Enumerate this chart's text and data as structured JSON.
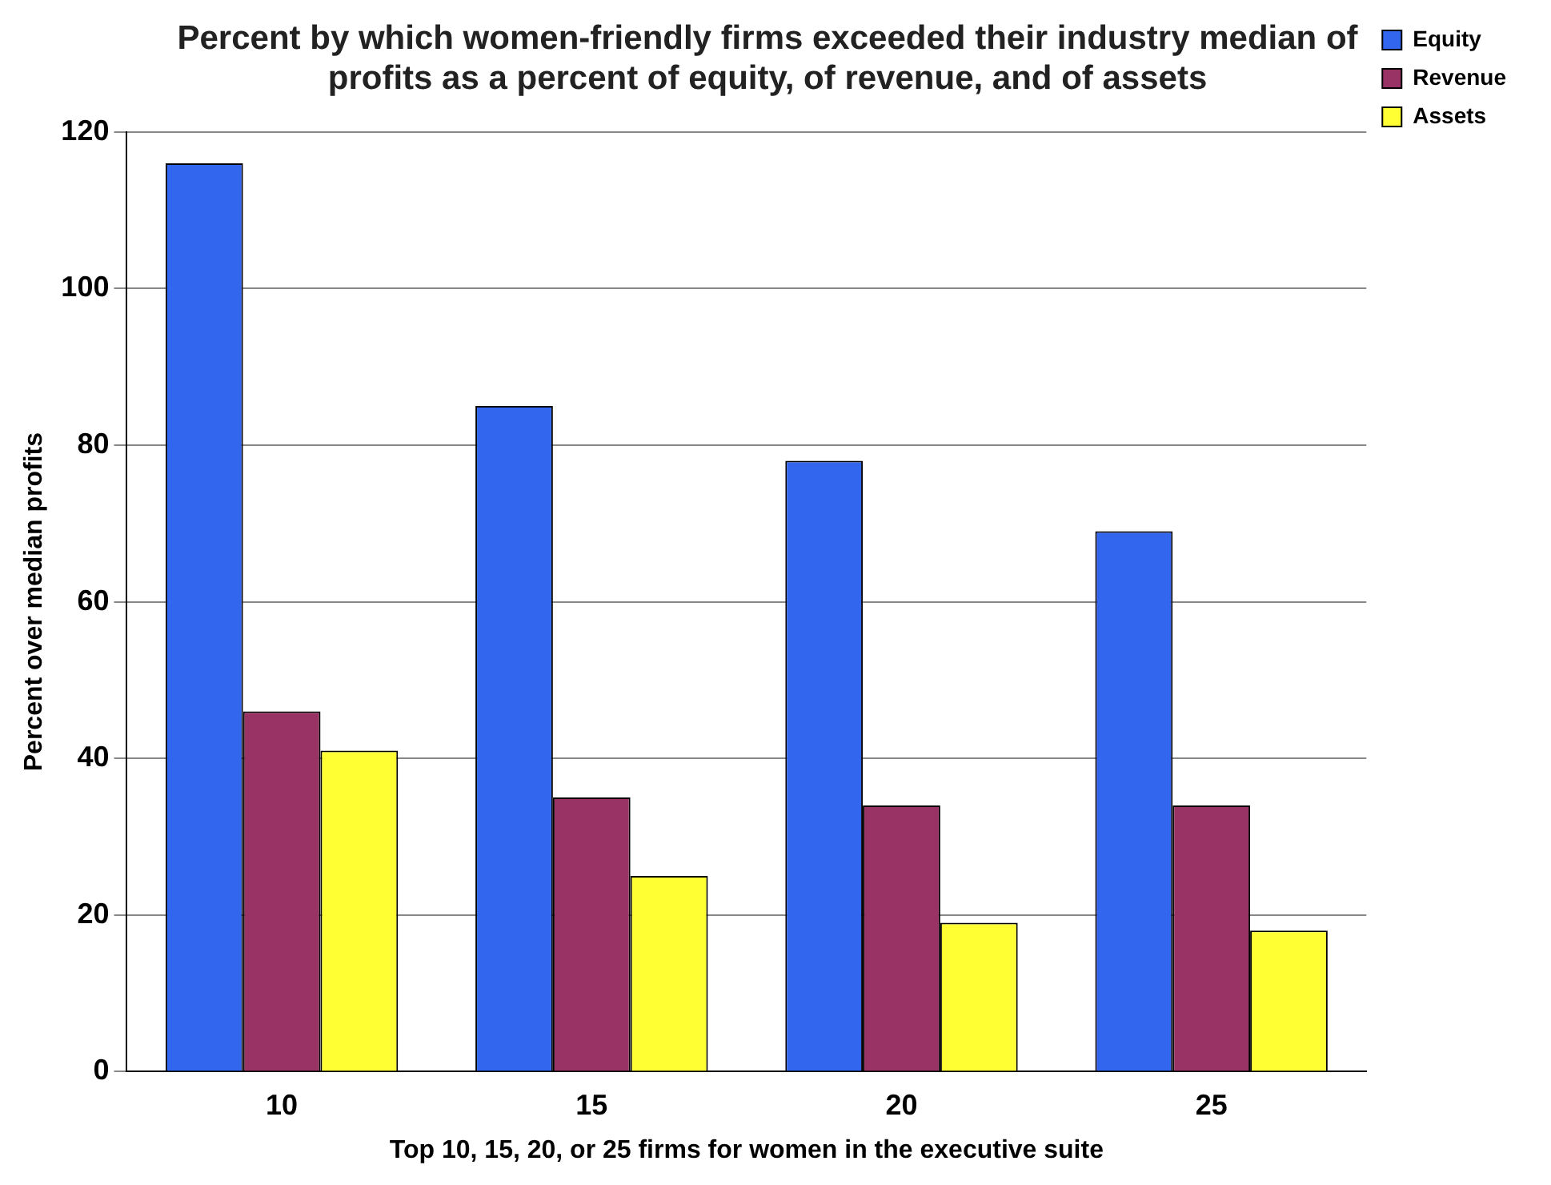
{
  "chart_data": {
    "type": "bar",
    "title": "Percent by which women-friendly firms exceeded their industry median of profits as a percent of equity, of revenue, and of assets",
    "xlabel": "Top 10, 15, 20, or 25 firms for women in the executive suite",
    "ylabel": "Percent over median profits",
    "categories": [
      "10",
      "15",
      "20",
      "25"
    ],
    "series": [
      {
        "name": "Equity",
        "color": "#3366ee",
        "values": [
          116,
          85,
          78,
          69
        ]
      },
      {
        "name": "Revenue",
        "color": "#993366",
        "values": [
          46,
          35,
          34,
          34
        ]
      },
      {
        "name": "Assets",
        "color": "#ffff33",
        "values": [
          41,
          25,
          19,
          18
        ]
      }
    ],
    "ylim": [
      0,
      120
    ],
    "yticks": [
      0,
      20,
      40,
      60,
      80,
      100,
      120
    ],
    "grid": "y",
    "legend": "top right"
  }
}
